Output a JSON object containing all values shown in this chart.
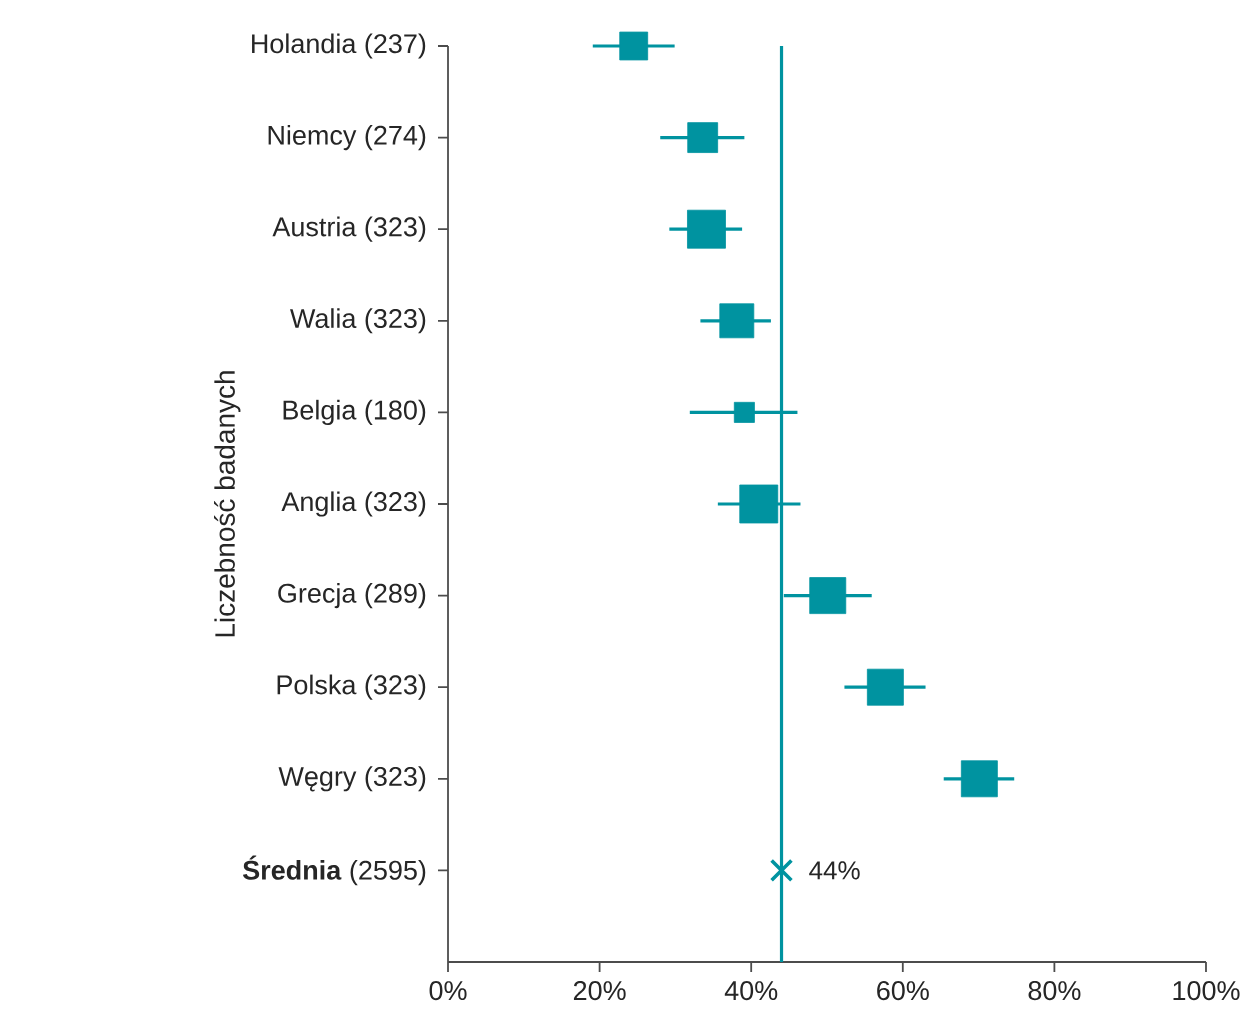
{
  "chart_data": {
    "type": "bubble",
    "orientation": "horizontal",
    "ylabel": "Liczebność badanych",
    "categories": [
      "Holandia (237)",
      "Niemcy (274)",
      "Austria (323)",
      "Walia (323)",
      "Belgia (180)",
      "Anglia (323)",
      "Grecja (289)",
      "Polska (323)",
      "Węgry (323)",
      "**Średnia** (2595)"
    ],
    "xlim": [
      0,
      100
    ],
    "xticks": [
      {
        "value": 0,
        "label": "0%"
      },
      {
        "value": 20,
        "label": "20%"
      },
      {
        "value": 40,
        "label": "40%"
      },
      {
        "value": 60,
        "label": "60%"
      },
      {
        "value": 80,
        "label": "80%"
      },
      {
        "value": 100,
        "label": "100%"
      }
    ],
    "marker": "square",
    "series": [
      {
        "color": "#0093a0",
        "values": [
          24.5,
          33.6,
          34.1,
          38.1,
          39.1,
          41.0,
          50.1,
          57.7,
          70.1,
          null
        ],
        "errors": [
          [
            19.1,
            29.9
          ],
          [
            28.0,
            39.1
          ],
          [
            29.2,
            38.8
          ],
          [
            33.3,
            42.6
          ],
          [
            31.9,
            46.1
          ],
          [
            35.6,
            46.5
          ],
          [
            44.3,
            55.9
          ],
          [
            52.3,
            63.0
          ],
          [
            65.4,
            74.7
          ],
          null
        ],
        "sizes": [
          0.54,
          0.62,
          1,
          0.8,
          0.28,
          1,
          0.9,
          0.9,
          0.9,
          null
        ]
      },
      {
        "type": "scatter",
        "marker": "cross",
        "color": "#0093a0",
        "values": [
          null,
          null,
          null,
          null,
          null,
          null,
          null,
          null,
          null,
          44
        ],
        "value_labels": [
          null,
          null,
          null,
          null,
          null,
          null,
          null,
          null,
          null,
          "44%"
        ]
      }
    ],
    "ref_lines": [
      {
        "axis": "x",
        "value": 44,
        "color": "#0093a0"
      }
    ]
  }
}
